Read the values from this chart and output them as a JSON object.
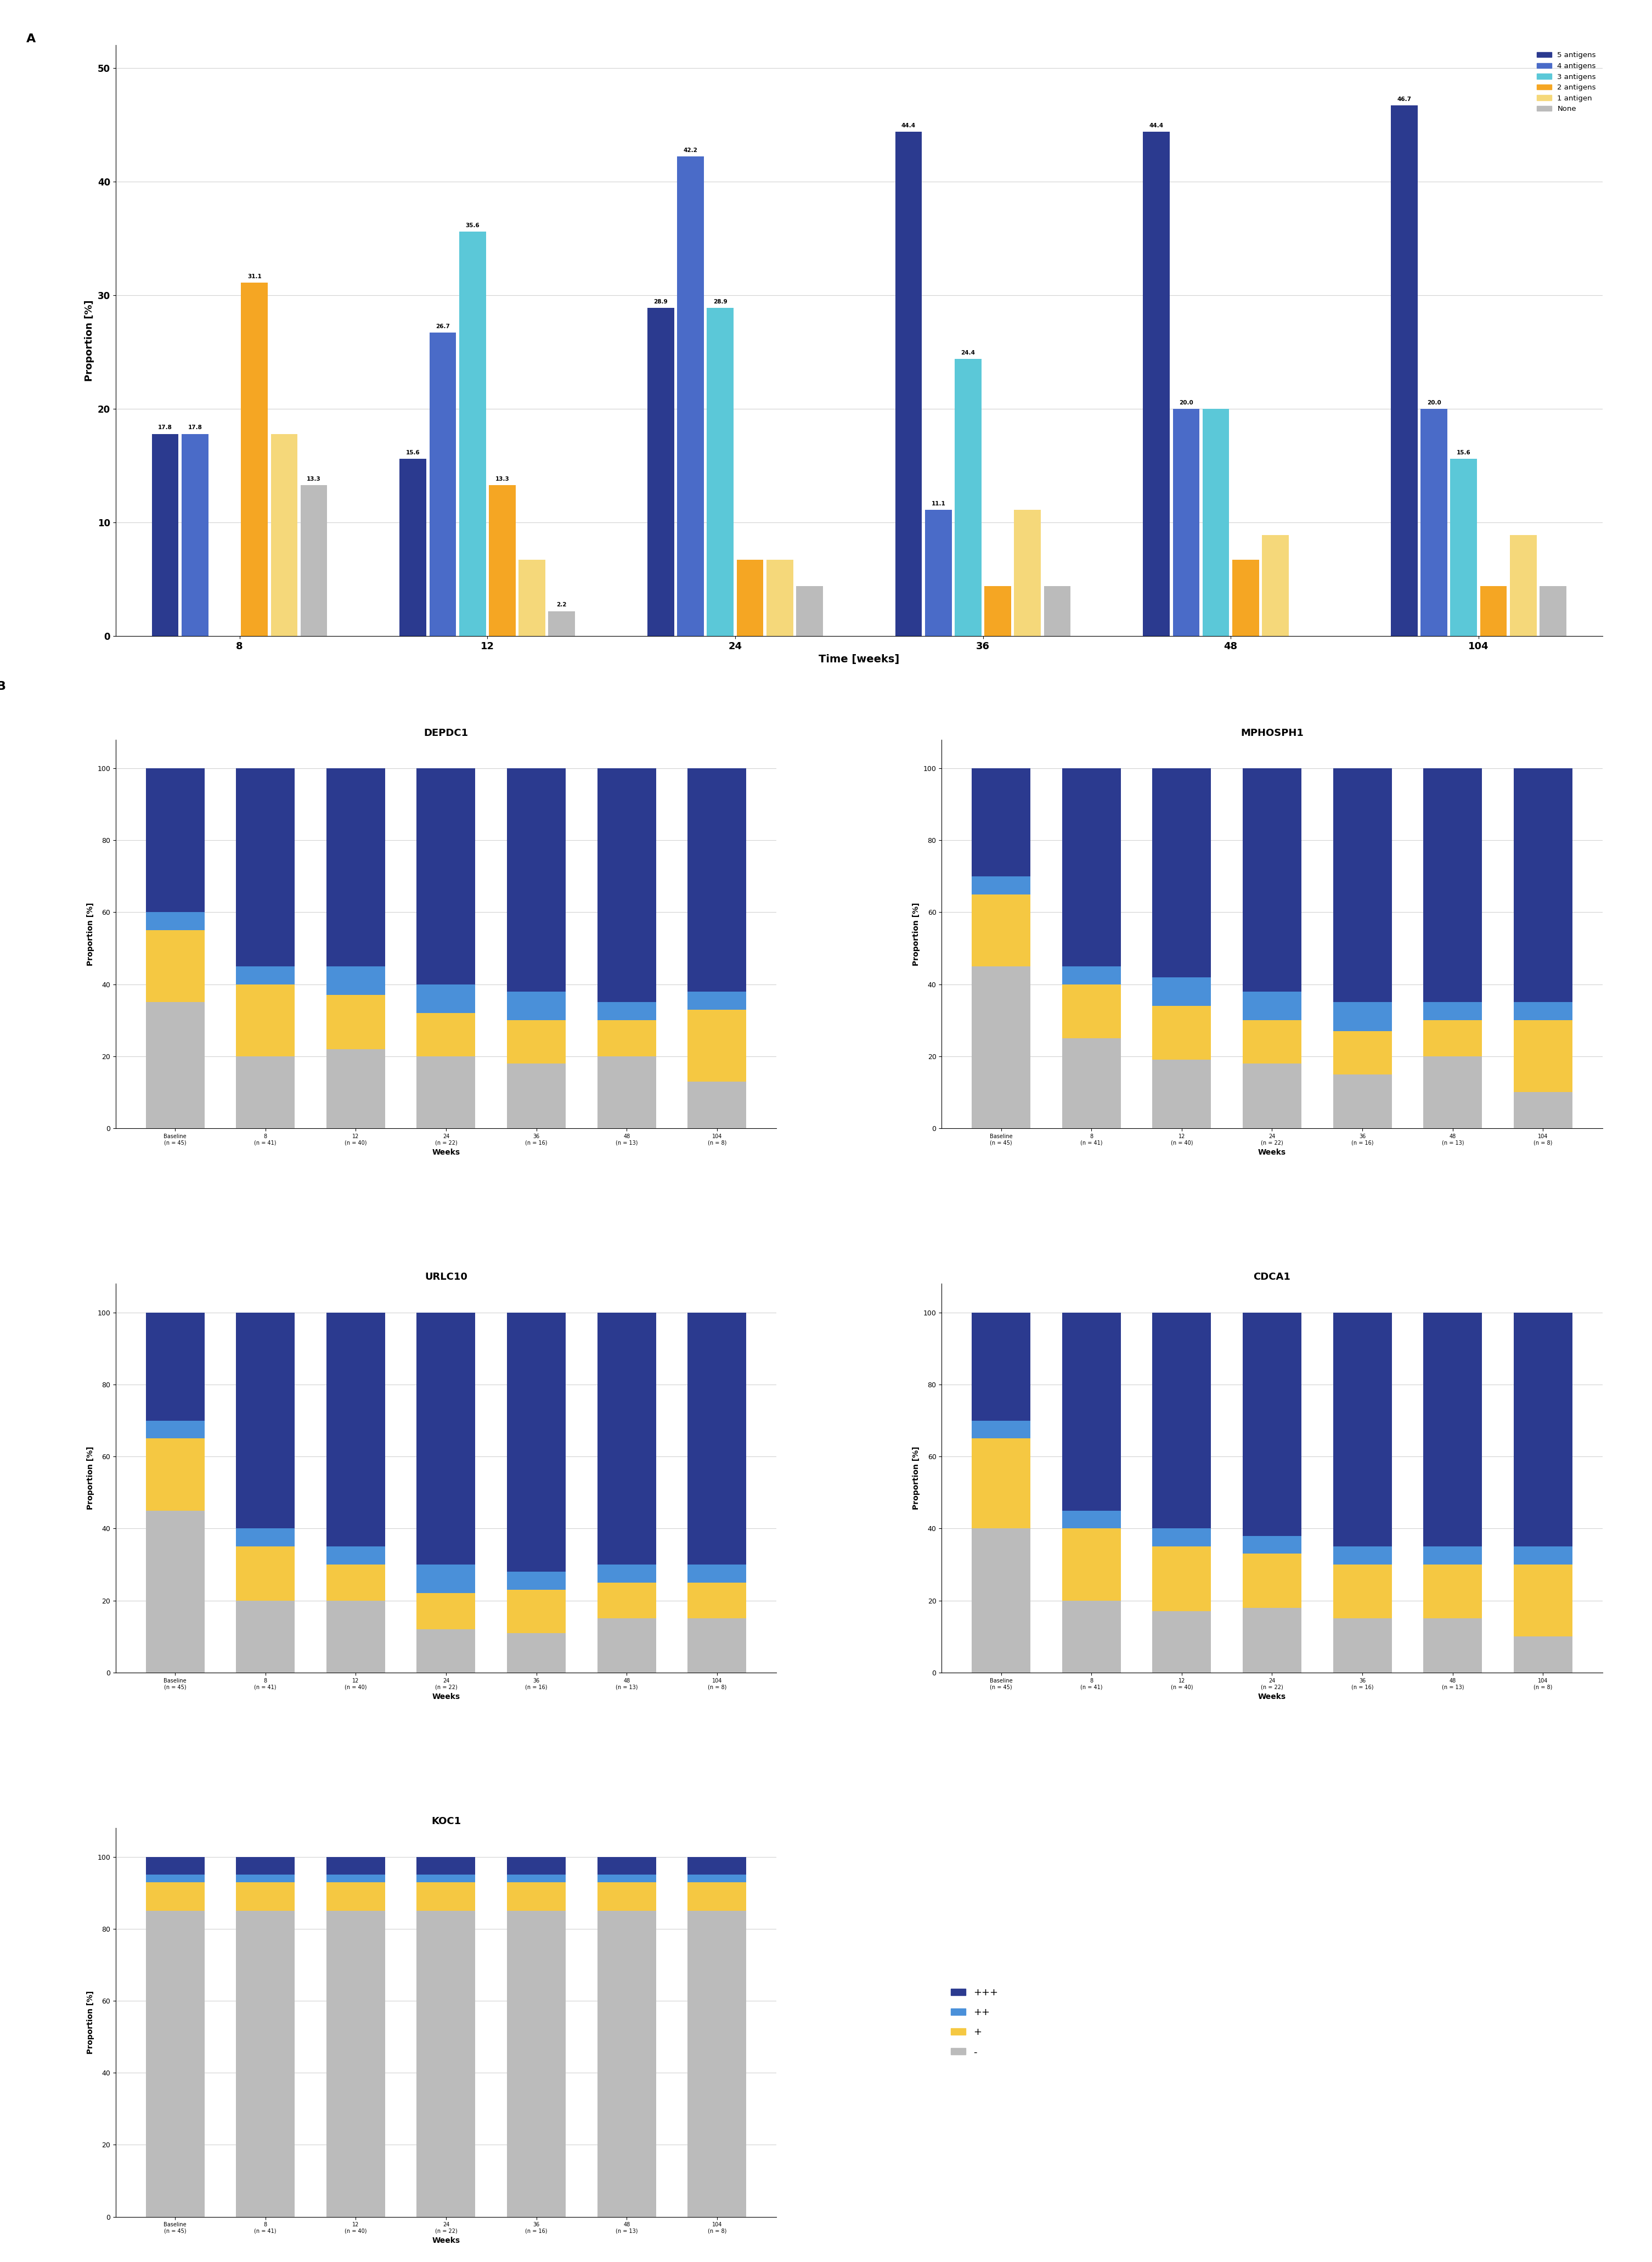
{
  "panel_A": {
    "title": "A",
    "xlabel": "Time [weeks]",
    "ylabel": "Proportion [%]",
    "time_points": [
      8,
      12,
      24,
      36,
      48,
      104
    ],
    "categories": [
      "5 antigens",
      "4 antigens",
      "3 antigens",
      "2 antigens",
      "1 antigen",
      "None"
    ],
    "colors": [
      "#2B3A8F",
      "#4A6BC8",
      "#5BC8D8",
      "#F5A623",
      "#F5D87A",
      "#BBBBBB"
    ],
    "data": {
      "5 antigens": [
        17.8,
        15.6,
        28.9,
        44.4,
        44.4,
        46.7
      ],
      "4 antigens": [
        17.8,
        26.7,
        42.2,
        11.1,
        20.0,
        20.0
      ],
      "3 antigens": [
        0.0,
        35.6,
        28.9,
        24.4,
        20.0,
        15.6
      ],
      "2 antigens": [
        31.1,
        13.3,
        6.7,
        4.4,
        6.7,
        4.4
      ],
      "1 antigen": [
        17.8,
        6.7,
        6.7,
        11.1,
        8.9,
        8.9
      ],
      "None": [
        13.3,
        2.2,
        4.4,
        4.4,
        0.0,
        4.4
      ]
    },
    "labels": {
      "5 antigens": [
        17.8,
        15.6,
        28.9,
        44.4,
        44.4,
        46.7
      ],
      "4 antigens": [
        17.8,
        26.7,
        42.2,
        11.1,
        20.0,
        20.0
      ],
      "3 antigens": [
        null,
        35.6,
        28.9,
        24.4,
        null,
        15.6
      ],
      "2 antigens": [
        31.1,
        13.3,
        null,
        null,
        null,
        null
      ],
      "1 antigen": [
        null,
        null,
        null,
        null,
        null,
        null
      ],
      "None": [
        13.3,
        2.2,
        null,
        null,
        null,
        null
      ]
    },
    "ylim": [
      0,
      52
    ],
    "yticks": [
      0,
      10,
      20,
      30,
      40,
      50
    ]
  },
  "panel_B": {
    "subplots": [
      "DEPDC1",
      "MPHOSPH1",
      "URLC10",
      "CDCA1",
      "KOC1"
    ],
    "xlabel": "Weeks",
    "ylabel": "Proportion [%]",
    "time_labels": [
      "Baseline\n(n = 45)",
      "8\n(n = 41)",
      "12\n(n = 40)",
      "24\n(n = 22)",
      "36\n(n = 16)",
      "48\n(n = 13)",
      "104\n(n = 8)"
    ],
    "categories": [
      "+++",
      "++",
      "+",
      "-"
    ],
    "colors": [
      "#2B3A8F",
      "#4A90D9",
      "#F5C842",
      "#BBBBBB"
    ],
    "data": {
      "DEPDC1": {
        "+++": [
          40,
          55,
          55,
          60,
          62,
          65,
          62
        ],
        "++": [
          5,
          5,
          8,
          8,
          8,
          5,
          5
        ],
        "+": [
          20,
          20,
          15,
          12,
          12,
          10,
          20
        ],
        "-": [
          35,
          20,
          22,
          20,
          18,
          20,
          13
        ]
      },
      "MPHOSPH1": {
        "+++": [
          30,
          55,
          58,
          62,
          65,
          65,
          65
        ],
        "++": [
          5,
          5,
          8,
          8,
          8,
          5,
          5
        ],
        "+": [
          20,
          15,
          15,
          12,
          12,
          10,
          20
        ],
        "-": [
          45,
          25,
          19,
          18,
          15,
          20,
          10
        ]
      },
      "URLC10": {
        "+++": [
          30,
          60,
          65,
          70,
          72,
          70,
          70
        ],
        "++": [
          5,
          5,
          5,
          8,
          5,
          5,
          5
        ],
        "+": [
          20,
          15,
          10,
          10,
          12,
          10,
          10
        ],
        "-": [
          45,
          20,
          20,
          12,
          11,
          15,
          15
        ]
      },
      "CDCA1": {
        "+++": [
          30,
          55,
          60,
          62,
          65,
          65,
          65
        ],
        "++": [
          5,
          5,
          5,
          5,
          5,
          5,
          5
        ],
        "+": [
          25,
          20,
          18,
          15,
          15,
          15,
          20
        ],
        "-": [
          40,
          20,
          17,
          18,
          15,
          15,
          10
        ]
      },
      "KOC1": {
        "+++": [
          5,
          5,
          5,
          5,
          5,
          5,
          5
        ],
        "++": [
          2,
          2,
          2,
          2,
          2,
          2,
          2
        ],
        "+": [
          8,
          8,
          8,
          8,
          8,
          8,
          8
        ],
        "-": [
          85,
          85,
          85,
          85,
          85,
          85,
          85
        ]
      }
    }
  }
}
